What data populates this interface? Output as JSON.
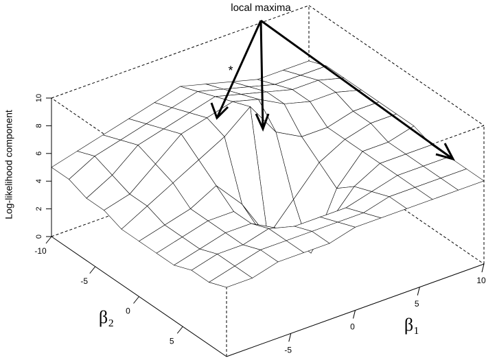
{
  "chart_data": {
    "type": "surface",
    "annotation": "local maxima",
    "marker_note": "*",
    "z_label": "Log-likelihood component",
    "x_label": "β₁",
    "y_label": "β₂",
    "x": [
      -10,
      -8,
      -6,
      -4,
      -2,
      0,
      2,
      4,
      6,
      8,
      10
    ],
    "y": [
      -10,
      -8,
      -6,
      -4,
      -2,
      0,
      2,
      4,
      6,
      8,
      10
    ],
    "z": [
      [
        5,
        5.5,
        6,
        6.5,
        7,
        7.5,
        7,
        6.5,
        6,
        6,
        6
      ],
      [
        5,
        6,
        6.5,
        7,
        7.5,
        8,
        7.5,
        7,
        6.5,
        6.5,
        6.5
      ],
      [
        4.5,
        5.5,
        7,
        7.5,
        8,
        8.5,
        8,
        7.5,
        7,
        7,
        6.5
      ],
      [
        4.5,
        5,
        6.5,
        8,
        8.5,
        9,
        8.5,
        7.5,
        7,
        7,
        6.5
      ],
      [
        4,
        5,
        6,
        7,
        8,
        9.5,
        7,
        6,
        6,
        6.5,
        6.5
      ],
      [
        4,
        4.5,
        5,
        6,
        4,
        1,
        3,
        5,
        6,
        6.5,
        6.5
      ],
      [
        4,
        4.5,
        5,
        5,
        3,
        2,
        0,
        4,
        6,
        6,
        6.5
      ],
      [
        4,
        4.5,
        5,
        5,
        4,
        3,
        3,
        5,
        6,
        6,
        6
      ],
      [
        4.5,
        5,
        5,
        5.5,
        5,
        5,
        5,
        5.5,
        6,
        6,
        6
      ],
      [
        4.5,
        5,
        5.5,
        5.5,
        5.5,
        5.5,
        5.5,
        6,
        6,
        6,
        6
      ],
      [
        5,
        5,
        5.5,
        5.5,
        5.5,
        6,
        6,
        6,
        6,
        6,
        6
      ]
    ],
    "xlim": [
      -10,
      10
    ],
    "ylim": [
      -10,
      10
    ],
    "zlim": [
      0,
      10
    ],
    "xticks": [
      -5,
      0,
      5,
      10
    ],
    "yticks": [
      -10,
      -5,
      0,
      5
    ],
    "zticks": [
      0,
      2,
      4,
      6,
      8,
      10
    ],
    "color": "#ffffff",
    "line_color": "#000000"
  }
}
